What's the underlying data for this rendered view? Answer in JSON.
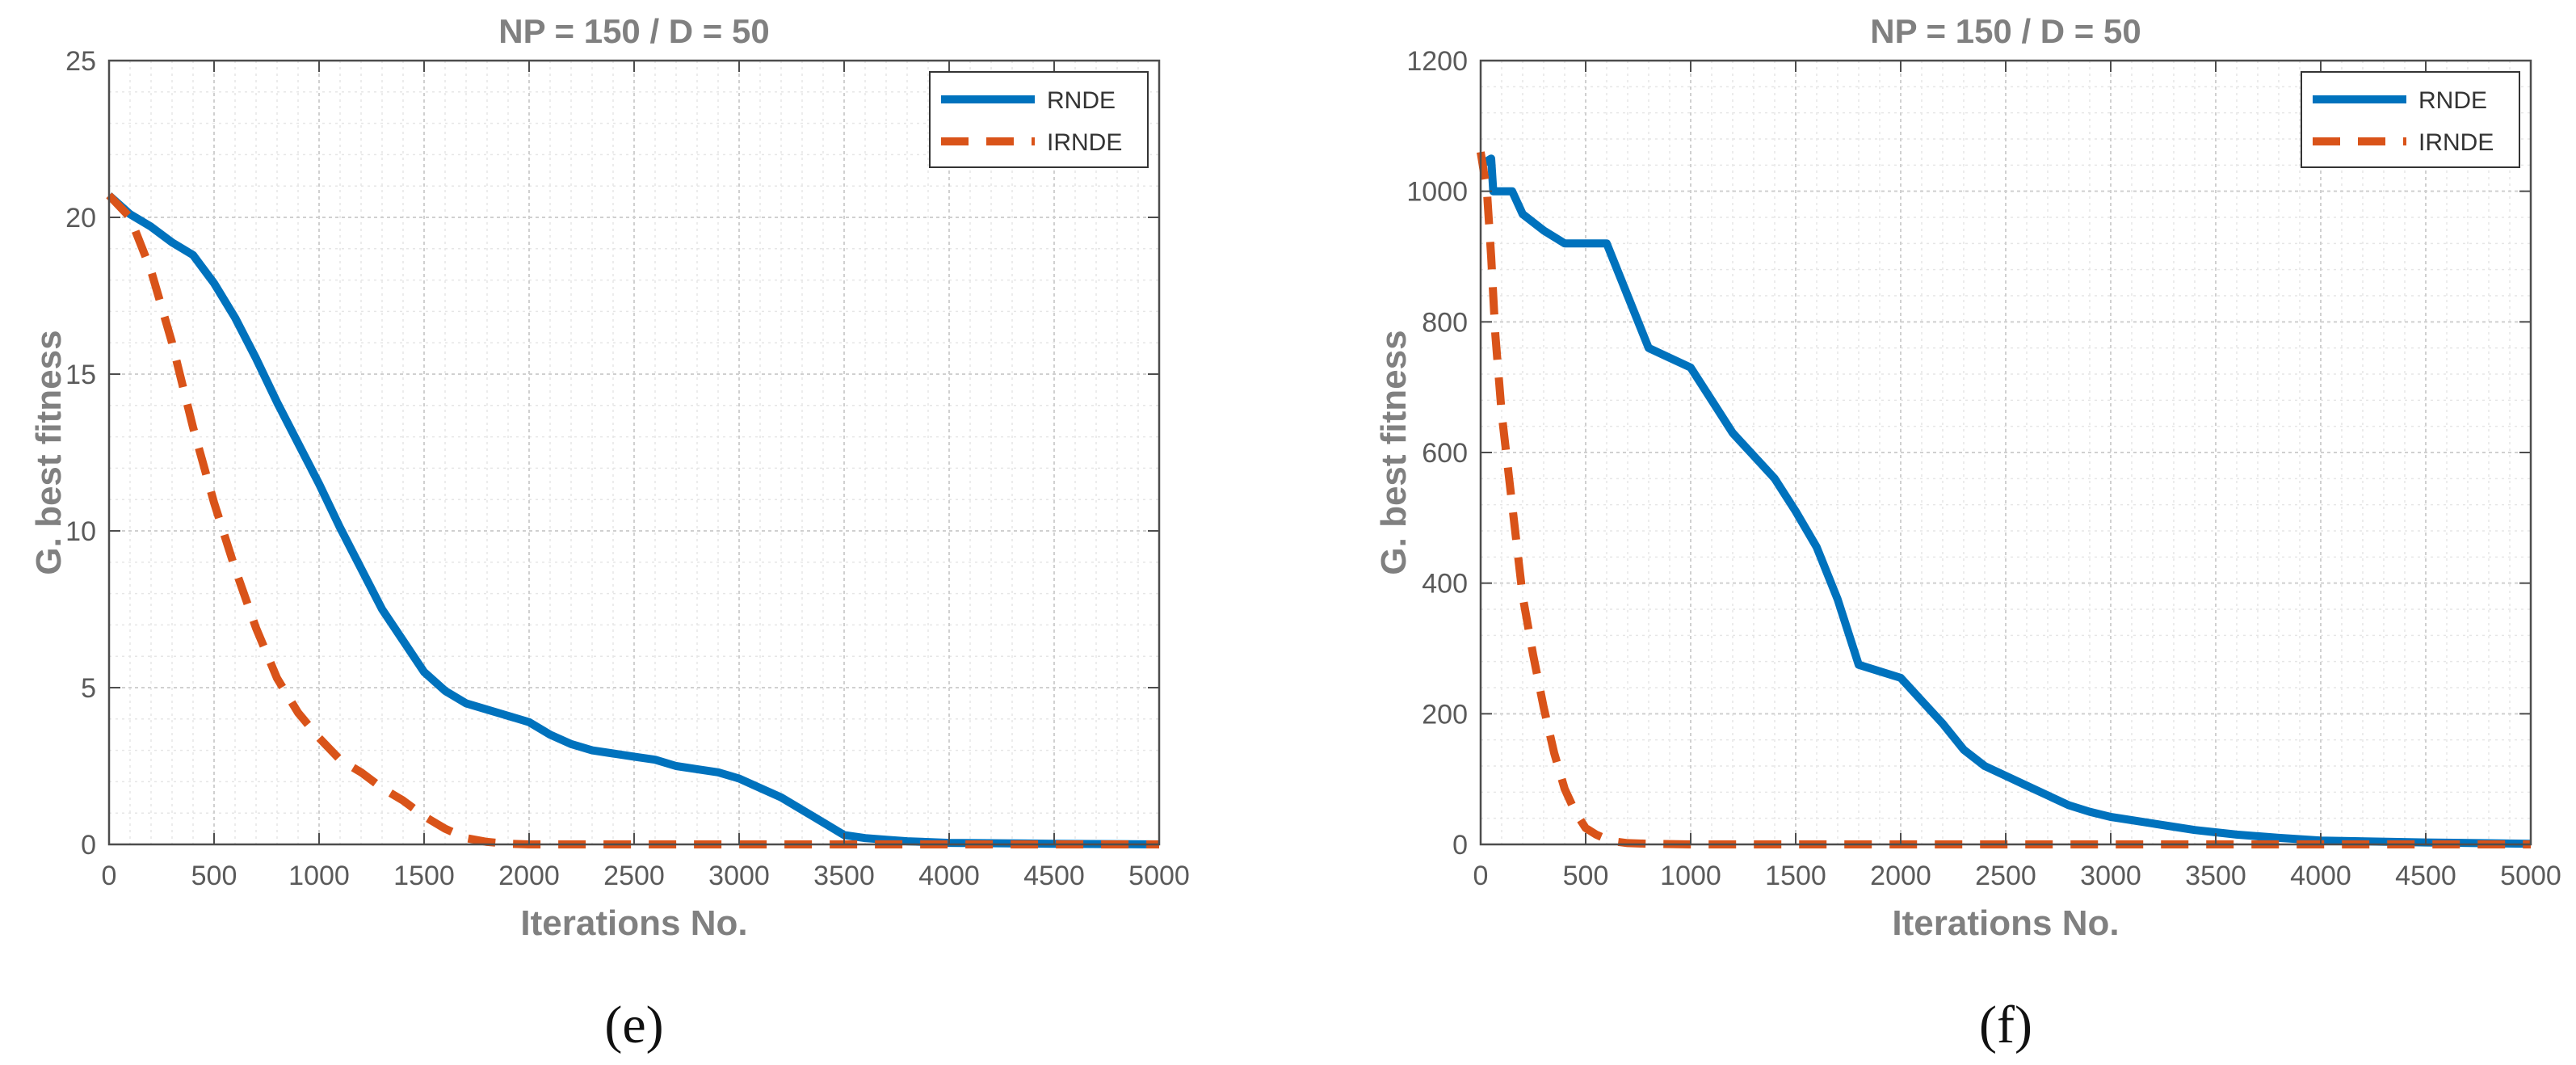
{
  "chart_data": [
    {
      "type": "line",
      "title": "NP = 150 / D = 50",
      "xlabel": "Iterations No.",
      "ylabel": "G. best fitness",
      "caption": "(e)",
      "xlim": [
        0,
        5000
      ],
      "ylim": [
        0,
        25
      ],
      "xticks": [
        0,
        500,
        1000,
        1500,
        2000,
        2500,
        3000,
        3500,
        4000,
        4500,
        5000
      ],
      "yticks": [
        0,
        5,
        10,
        15,
        20,
        25
      ],
      "grid": true,
      "legend_position": "top-right",
      "series": [
        {
          "name": "RNDE",
          "color": "#0072BD",
          "style": "solid",
          "x": [
            0,
            100,
            200,
            300,
            400,
            500,
            600,
            700,
            800,
            900,
            1000,
            1100,
            1200,
            1300,
            1400,
            1500,
            1600,
            1700,
            1800,
            1900,
            2000,
            2100,
            2200,
            2300,
            2400,
            2500,
            2600,
            2700,
            2800,
            2900,
            3000,
            3100,
            3200,
            3300,
            3400,
            3500,
            3600,
            3700,
            3800,
            4000,
            4500,
            5000
          ],
          "y": [
            20.7,
            20.1,
            19.7,
            19.2,
            18.8,
            17.9,
            16.8,
            15.5,
            14.1,
            12.8,
            11.5,
            10.1,
            8.8,
            7.5,
            6.5,
            5.5,
            4.9,
            4.5,
            4.3,
            4.1,
            3.9,
            3.5,
            3.2,
            3.0,
            2.9,
            2.8,
            2.7,
            2.5,
            2.4,
            2.3,
            2.1,
            1.8,
            1.5,
            1.1,
            0.7,
            0.3,
            0.2,
            0.15,
            0.1,
            0.05,
            0.02,
            0.0
          ]
        },
        {
          "name": "IRNDE",
          "color": "#D95319",
          "style": "dashed",
          "x": [
            0,
            100,
            200,
            300,
            400,
            500,
            600,
            700,
            800,
            900,
            1000,
            1100,
            1200,
            1300,
            1400,
            1500,
            1600,
            1700,
            1800,
            1900,
            2000,
            2500,
            3000,
            3500,
            4000,
            4500,
            5000
          ],
          "y": [
            20.7,
            20.0,
            18.3,
            16.0,
            13.3,
            10.9,
            8.8,
            6.9,
            5.3,
            4.2,
            3.4,
            2.7,
            2.3,
            1.8,
            1.4,
            0.9,
            0.5,
            0.2,
            0.08,
            0.02,
            0.0,
            0.0,
            0.0,
            0.0,
            0.0,
            0.0,
            0.0
          ]
        }
      ]
    },
    {
      "type": "line",
      "title": "NP = 150 / D = 50",
      "xlabel": "Iterations No.",
      "ylabel": "G. best fitness",
      "caption": "(f)",
      "xlim": [
        0,
        5000
      ],
      "ylim": [
        0,
        1200
      ],
      "xticks": [
        0,
        500,
        1000,
        1500,
        2000,
        2500,
        3000,
        3500,
        4000,
        4500,
        5000
      ],
      "yticks": [
        0,
        200,
        400,
        600,
        800,
        1000,
        1200
      ],
      "grid": true,
      "legend_position": "top-right",
      "series": [
        {
          "name": "RNDE",
          "color": "#0072BD",
          "style": "solid",
          "x": [
            0,
            50,
            60,
            150,
            200,
            300,
            400,
            500,
            600,
            700,
            800,
            900,
            1000,
            1100,
            1200,
            1300,
            1400,
            1500,
            1600,
            1700,
            1800,
            1900,
            2000,
            2100,
            2200,
            2300,
            2400,
            2500,
            2600,
            2700,
            2800,
            2900,
            3000,
            3200,
            3400,
            3600,
            3800,
            4000,
            4500,
            5000
          ],
          "y": [
            1040,
            1050,
            1000,
            1000,
            965,
            940,
            920,
            920,
            920,
            840,
            760,
            745,
            730,
            680,
            630,
            595,
            560,
            510,
            455,
            375,
            275,
            265,
            255,
            220,
            185,
            145,
            120,
            105,
            90,
            75,
            60,
            50,
            42,
            32,
            22,
            15,
            10,
            6,
            3,
            1
          ]
        },
        {
          "name": "IRNDE",
          "color": "#D95319",
          "style": "dashed",
          "x": [
            0,
            30,
            50,
            70,
            100,
            150,
            200,
            250,
            300,
            350,
            400,
            450,
            500,
            550,
            600,
            650,
            700,
            800,
            1000,
            1500,
            2000,
            3000,
            4000,
            5000
          ],
          "y": [
            1060,
            1000,
            900,
            780,
            660,
            520,
            380,
            290,
            210,
            140,
            85,
            50,
            25,
            15,
            8,
            4,
            2,
            1,
            0,
            0,
            0,
            0,
            0,
            0
          ]
        }
      ]
    }
  ]
}
